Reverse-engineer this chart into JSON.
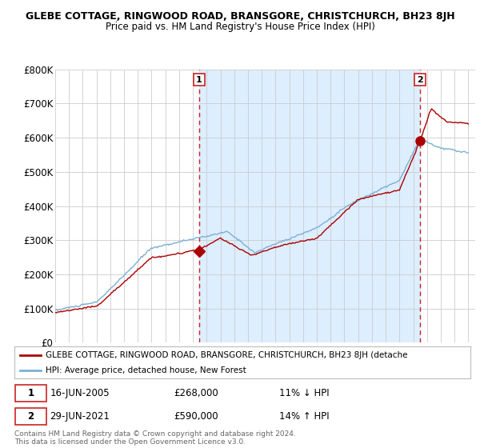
{
  "title": "GLEBE COTTAGE, RINGWOOD ROAD, BRANSGORE, CHRISTCHURCH, BH23 8JH",
  "subtitle": "Price paid vs. HM Land Registry's House Price Index (HPI)",
  "ylim": [
    0,
    800000
  ],
  "yticks": [
    0,
    100000,
    200000,
    300000,
    400000,
    500000,
    600000,
    700000,
    800000
  ],
  "ytick_labels": [
    "£0",
    "£100K",
    "£200K",
    "£300K",
    "£400K",
    "£500K",
    "£600K",
    "£700K",
    "£800K"
  ],
  "xlim": [
    1995,
    2025.5
  ],
  "transaction1": {
    "year": 2005.46,
    "price": 268000,
    "label": "1",
    "date": "16-JUN-2005",
    "pct": "11% ↓ HPI"
  },
  "transaction2": {
    "year": 2021.49,
    "price": 590000,
    "label": "2",
    "date": "29-JUN-2021",
    "pct": "14% ↑ HPI"
  },
  "legend_line1": "GLEBE COTTAGE, RINGWOOD ROAD, BRANSGORE, CHRISTCHURCH, BH23 8JH (detache",
  "legend_line2": "HPI: Average price, detached house, New Forest",
  "footer": "Contains HM Land Registry data © Crown copyright and database right 2024.\nThis data is licensed under the Open Government Licence v3.0.",
  "red_color": "#aa0000",
  "blue_color": "#7ab0d4",
  "fill_color": "#ddeeff",
  "grid_color": "#cccccc",
  "background_color": "#ffffff",
  "label_box_color": "#cc2222"
}
